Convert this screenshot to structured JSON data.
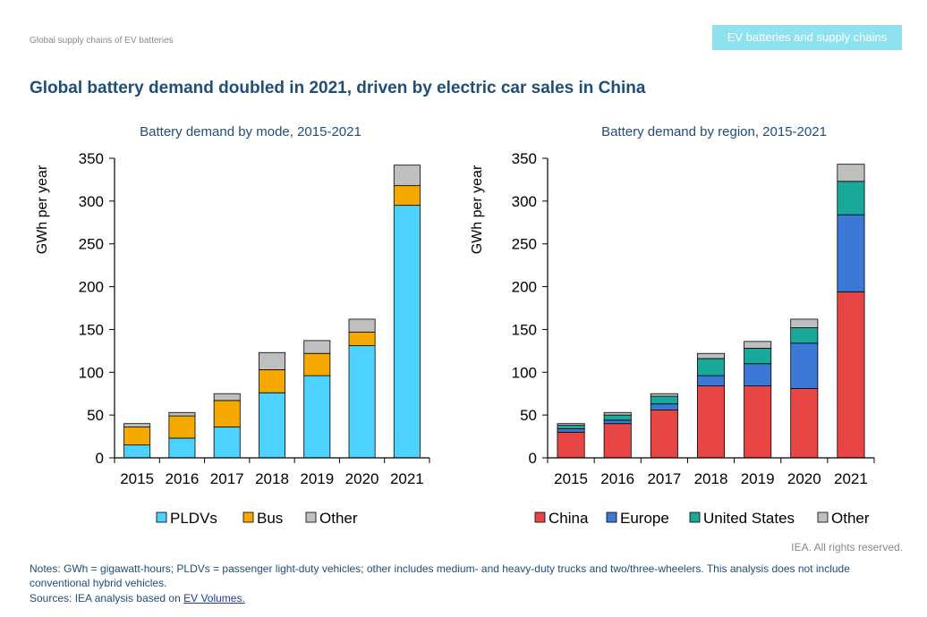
{
  "header": {
    "breadcrumb": "Global supply chains of EV batteries",
    "topic_tag": "EV batteries and supply chains",
    "headline": "Global battery demand doubled in 2021, driven by electric car sales in China"
  },
  "footer": {
    "rights": "IEA. All rights reserved.",
    "notes": "Notes: GWh = gigawatt-hours; PLDVs = passenger light-duty vehicles; other includes medium- and heavy-duty trucks and two/three-wheelers. This analysis does not include conventional hybrid vehicles.",
    "sources_prefix": "Sources: IEA analysis based on ",
    "sources_link": "EV Volumes."
  },
  "chart_data": [
    {
      "type": "bar",
      "stacked": true,
      "title": "Battery demand by mode, 2015-2021",
      "xlabel": "",
      "ylabel": "GWh per year",
      "ylim": [
        0,
        350
      ],
      "yticks": [
        0,
        50,
        100,
        150,
        200,
        250,
        300,
        350
      ],
      "grid": false,
      "legend_position": "bottom",
      "categories": [
        "2015",
        "2016",
        "2017",
        "2018",
        "2019",
        "2020",
        "2021"
      ],
      "series": [
        {
          "name": "PLDVs",
          "color": "#4dd2ff",
          "values": [
            15,
            23,
            36,
            76,
            96,
            131,
            295
          ]
        },
        {
          "name": "Bus",
          "color": "#f5a800",
          "values": [
            21,
            26,
            31,
            27,
            26,
            16,
            23
          ]
        },
        {
          "name": "Other",
          "color": "#bfbfbf",
          "values": [
            4,
            4,
            8,
            20,
            15,
            15,
            24
          ]
        }
      ]
    },
    {
      "type": "bar",
      "stacked": true,
      "title": "Battery demand by region, 2015-2021",
      "xlabel": "",
      "ylabel": "GWh per year",
      "ylim": [
        0,
        350
      ],
      "yticks": [
        0,
        50,
        100,
        150,
        200,
        250,
        300,
        350
      ],
      "grid": false,
      "legend_position": "bottom",
      "categories": [
        "2015",
        "2016",
        "2017",
        "2018",
        "2019",
        "2020",
        "2021"
      ],
      "series": [
        {
          "name": "China",
          "color": "#e84545",
          "values": [
            30,
            40,
            56,
            84,
            84,
            81,
            194
          ]
        },
        {
          "name": "Europe",
          "color": "#3c78d8",
          "values": [
            4,
            4,
            7,
            12,
            26,
            53,
            90
          ]
        },
        {
          "name": "United States",
          "color": "#19a89a",
          "values": [
            4,
            6,
            9,
            20,
            18,
            18,
            39
          ]
        },
        {
          "name": "Other",
          "color": "#bfbfbf",
          "values": [
            2,
            3,
            3,
            6,
            8,
            10,
            20
          ]
        }
      ]
    }
  ]
}
